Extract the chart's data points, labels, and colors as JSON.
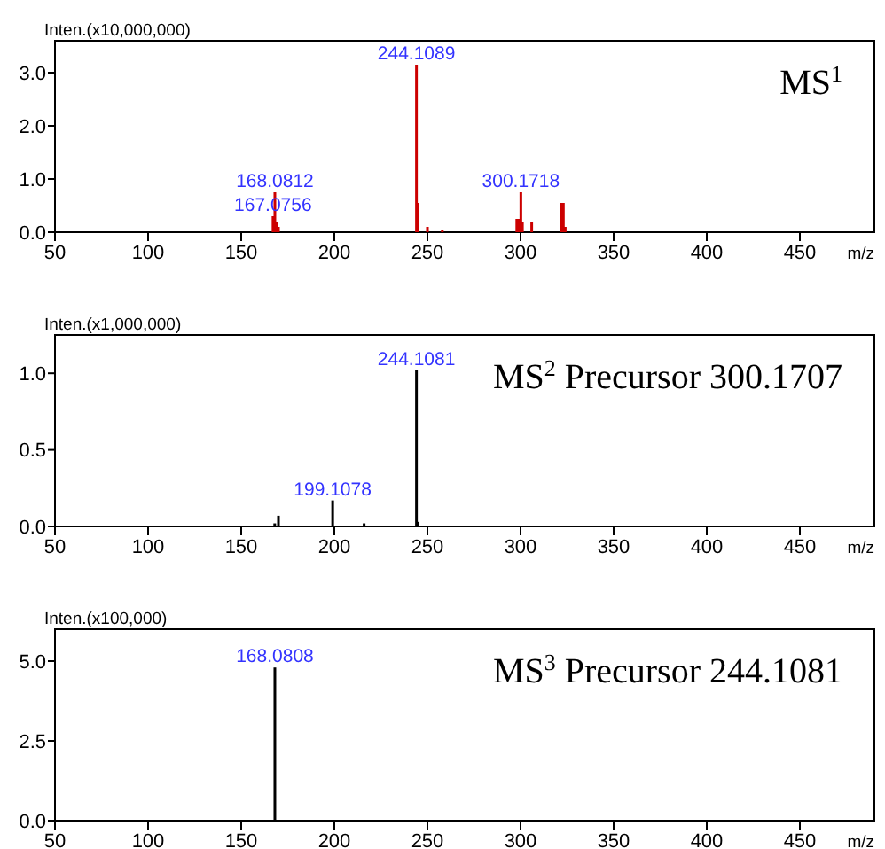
{
  "chart_data": [
    {
      "type": "bar",
      "ylabel": "Inten.(x10,000,000)",
      "xlabel": "m/z",
      "annotations": [
        "MS$^{1}$",
        {
          "text": "168.0812",
          "x": 168.0812,
          "y": 0.75
        },
        {
          "text": "167.0756",
          "x": 167.0756,
          "y": 0.3
        },
        {
          "text": "244.1089",
          "x": 244.1089,
          "y": 3.15
        },
        {
          "text": "300.1718",
          "x": 300.1718,
          "y": 0.75
        }
      ],
      "x": [
        167.0756,
        168.0812,
        169,
        170,
        244.1089,
        245,
        250,
        258,
        298,
        299,
        300.1718,
        301,
        306,
        322,
        323,
        324
      ],
      "values": [
        0.3,
        0.75,
        0.2,
        0.1,
        3.15,
        0.55,
        0.1,
        0.05,
        0.25,
        0.25,
        0.75,
        0.2,
        0.2,
        0.55,
        0.55,
        0.1
      ],
      "color": "#cc0000",
      "xlim": [
        50,
        490
      ],
      "xticks": [
        50,
        100,
        150,
        200,
        250,
        300,
        350,
        400,
        450
      ],
      "ylim": [
        0,
        3.6
      ],
      "yticks": [
        {
          "value": 0,
          "label": "0.0"
        },
        {
          "value": 1,
          "label": "1.0"
        },
        {
          "value": 2,
          "label": "2.0"
        },
        {
          "value": 3,
          "label": "3.0"
        }
      ]
    },
    {
      "type": "bar",
      "ylabel": "Inten.(x1,000,000)",
      "xlabel": "m/z",
      "annotations": [
        "MS$^{2}$    Precursor 300.1707",
        {
          "text": "199.1078",
          "x": 199.1078,
          "y": 0.17
        },
        {
          "text": "244.1081",
          "x": 244.1081,
          "y": 1.02
        }
      ],
      "x": [
        168,
        170,
        199.1078,
        216,
        244.1081,
        245
      ],
      "values": [
        0.02,
        0.07,
        0.17,
        0.02,
        1.02,
        0.03
      ],
      "color": "#000000",
      "xlim": [
        50,
        490
      ],
      "xticks": [
        50,
        100,
        150,
        200,
        250,
        300,
        350,
        400,
        450
      ],
      "ylim": [
        0,
        1.25
      ],
      "yticks": [
        {
          "value": 0,
          "label": "0.0"
        },
        0.5,
        {
          "value": 1,
          "label": "1.0"
        }
      ]
    },
    {
      "type": "bar",
      "ylabel": "Inten.(x100,000)",
      "xlabel": "m/z",
      "annotations": [
        "MS$^{3}$ Precursor 244.1081",
        {
          "text": "168.0808",
          "x": 168.0808,
          "y": 4.8
        }
      ],
      "x": [
        168.0808
      ],
      "values": [
        4.8
      ],
      "color": "#000000",
      "xlim": [
        50,
        490
      ],
      "xticks": [
        50,
        100,
        150,
        200,
        250,
        300,
        350,
        400,
        450
      ],
      "ylim": [
        0,
        6
      ],
      "yticks": [
        {
          "value": 0,
          "label": "0.0"
        },
        2.5,
        {
          "value": 5,
          "label": "5.0"
        }
      ]
    }
  ]
}
